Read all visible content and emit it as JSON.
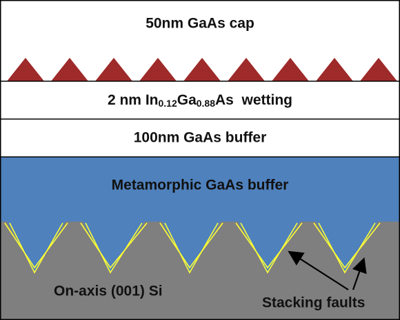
{
  "layers": {
    "cap": "50nm GaAs cap",
    "wetting": {
      "parts": [
        "2 nm In",
        "0.12",
        "Ga",
        "0.88",
        "As  wetting"
      ]
    },
    "buffer": "100nm GaAs buffer",
    "metamorphic": "Metamorphic GaAs buffer",
    "substrate": "On-axis (001) Si"
  },
  "annotation": "Stacking faults"
}
